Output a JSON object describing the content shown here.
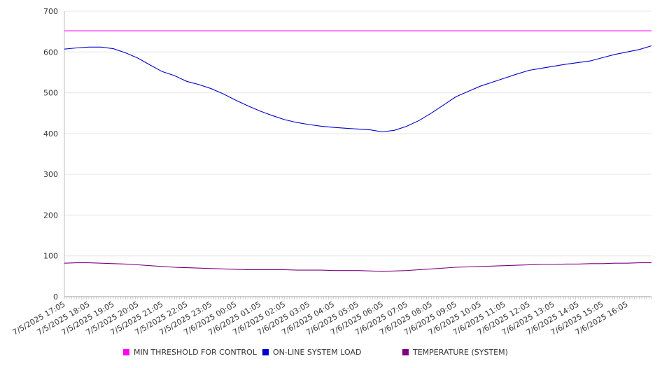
{
  "chart_data": {
    "type": "line",
    "title": "",
    "xlabel": "",
    "ylabel": "",
    "ylim": [
      0,
      700
    ],
    "y_ticks": [
      0,
      100,
      200,
      300,
      400,
      500,
      600,
      700
    ],
    "grid": "horizontal",
    "legend_position": "bottom",
    "x_tick_labels": [
      "7/5/2025 17:05",
      "7/5/2025 18:05",
      "7/5/2025 19:05",
      "7/5/2025 20:05",
      "7/5/2025 21:05",
      "7/5/2025 22:05",
      "7/5/2025 23:05",
      "7/6/2025 00:05",
      "7/6/2025 01:05",
      "7/6/2025 02:05",
      "7/6/2025 03:05",
      "7/6/2025 04:05",
      "7/6/2025 05:05",
      "7/6/2025 06:05",
      "7/6/2025 07:05",
      "7/6/2025 08:05",
      "7/6/2025 09:05",
      "7/6/2025 10:05",
      "7/6/2025 11:05",
      "7/6/2025 12:05",
      "7/6/2025 13:05",
      "7/6/2025 14:05",
      "7/6/2025 15:05",
      "7/6/2025 16:05"
    ],
    "x": [
      "7/5/2025 17:05",
      "7/5/2025 17:35",
      "7/5/2025 18:05",
      "7/5/2025 18:35",
      "7/5/2025 19:05",
      "7/5/2025 19:35",
      "7/5/2025 20:05",
      "7/5/2025 20:35",
      "7/5/2025 21:05",
      "7/5/2025 21:35",
      "7/5/2025 22:05",
      "7/5/2025 22:35",
      "7/5/2025 23:05",
      "7/5/2025 23:35",
      "7/6/2025 00:05",
      "7/6/2025 00:35",
      "7/6/2025 01:05",
      "7/6/2025 01:35",
      "7/6/2025 02:05",
      "7/6/2025 02:35",
      "7/6/2025 03:05",
      "7/6/2025 03:35",
      "7/6/2025 04:05",
      "7/6/2025 04:35",
      "7/6/2025 05:05",
      "7/6/2025 05:35",
      "7/6/2025 06:05",
      "7/6/2025 06:35",
      "7/6/2025 07:05",
      "7/6/2025 07:35",
      "7/6/2025 08:05",
      "7/6/2025 08:35",
      "7/6/2025 09:05",
      "7/6/2025 09:35",
      "7/6/2025 10:05",
      "7/6/2025 10:35",
      "7/6/2025 11:05",
      "7/6/2025 11:35",
      "7/6/2025 12:05",
      "7/6/2025 12:35",
      "7/6/2025 13:05",
      "7/6/2025 13:35",
      "7/6/2025 14:05",
      "7/6/2025 14:35",
      "7/6/2025 15:05",
      "7/6/2025 15:35",
      "7/6/2025 16:05",
      "7/6/2025 16:35",
      "7/6/2025 17:05"
    ],
    "series": [
      {
        "name": "MIN THRESHOLD FOR CONTROL",
        "color": "#ff00ff",
        "values": [
          652,
          652,
          652,
          652,
          652,
          652,
          652,
          652,
          652,
          652,
          652,
          652,
          652,
          652,
          652,
          652,
          652,
          652,
          652,
          652,
          652,
          652,
          652,
          652,
          652,
          652,
          652,
          652,
          652,
          652,
          652,
          652,
          652,
          652,
          652,
          652,
          652,
          652,
          652,
          652,
          652,
          652,
          652,
          652,
          652,
          652,
          652,
          652,
          652
        ]
      },
      {
        "name": "ON-LINE SYSTEM LOAD",
        "color": "#0000cc",
        "values": [
          607,
          610,
          612,
          612,
          608,
          598,
          585,
          568,
          552,
          542,
          528,
          520,
          510,
          497,
          482,
          468,
          455,
          444,
          434,
          427,
          422,
          418,
          415,
          413,
          411,
          409,
          404,
          408,
          418,
          432,
          450,
          470,
          490,
          503,
          516,
          526,
          536,
          546,
          555,
          560,
          565,
          570,
          574,
          578,
          586,
          594,
          600,
          606,
          615
        ]
      },
      {
        "name": "TEMPERATURE (SYSTEM)",
        "color": "#800080",
        "values": [
          82,
          83,
          83,
          82,
          81,
          80,
          78,
          76,
          74,
          72,
          71,
          70,
          69,
          68,
          67,
          66,
          66,
          66,
          66,
          65,
          65,
          65,
          64,
          64,
          64,
          63,
          62,
          63,
          64,
          66,
          68,
          70,
          72,
          73,
          74,
          75,
          76,
          77,
          78,
          79,
          79,
          80,
          80,
          81,
          81,
          82,
          82,
          83,
          83
        ]
      }
    ]
  }
}
